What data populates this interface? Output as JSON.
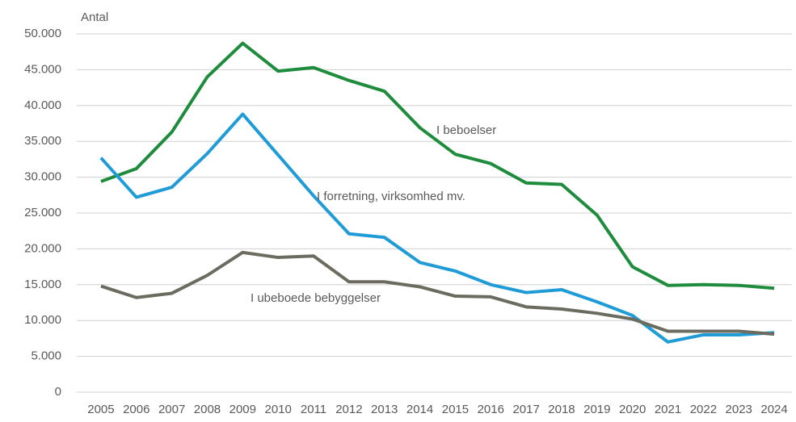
{
  "chart_data": {
    "type": "line",
    "y_axis_label": "Antal",
    "categories": [
      "2005",
      "2006",
      "2007",
      "2008",
      "2009",
      "2010",
      "2011",
      "2012",
      "2013",
      "2014",
      "2015",
      "2016",
      "2017",
      "2018",
      "2019",
      "2020",
      "2021",
      "2022",
      "2023",
      "2024"
    ],
    "series": [
      {
        "name": "I beboelser",
        "color": "#1e8c3c",
        "values": [
          29400,
          31200,
          36300,
          44000,
          48700,
          44800,
          45300,
          43500,
          42000,
          36900,
          33200,
          31900,
          29200,
          29000,
          24700,
          17500,
          14900,
          15000,
          14900,
          14500
        ]
      },
      {
        "name": "I forretning, virksomhed mv.",
        "color": "#1f9bd7",
        "values": [
          32700,
          27200,
          28600,
          33300,
          38800,
          33100,
          27400,
          22100,
          21600,
          18100,
          16900,
          15000,
          13900,
          14300,
          12600,
          10700,
          7000,
          8000,
          8000,
          8300
        ]
      },
      {
        "name": "I ubeboede bebyggelser",
        "color": "#6b6b60",
        "values": [
          14800,
          13200,
          13800,
          16300,
          19500,
          18800,
          19000,
          15400,
          15400,
          14700,
          13400,
          13300,
          11900,
          11600,
          11000,
          10200,
          8500,
          8500,
          8500,
          8100
        ]
      }
    ],
    "ylim": [
      0,
      50000
    ],
    "yticks": [
      0,
      {
        "value": 5000,
        "label": "5.000"
      },
      {
        "value": 10000,
        "label": "10.000"
      },
      {
        "value": 15000,
        "label": "15.000"
      },
      {
        "value": 20000,
        "label": "20.000"
      },
      {
        "value": 25000,
        "label": "25.000"
      },
      {
        "value": 30000,
        "label": "30.000"
      },
      {
        "value": 35000,
        "label": "35.000"
      },
      {
        "value": 40000,
        "label": "40.000"
      },
      {
        "value": 45000,
        "label": "45.000"
      },
      {
        "value": 50000,
        "label": "50.000"
      }
    ],
    "grid": true
  }
}
